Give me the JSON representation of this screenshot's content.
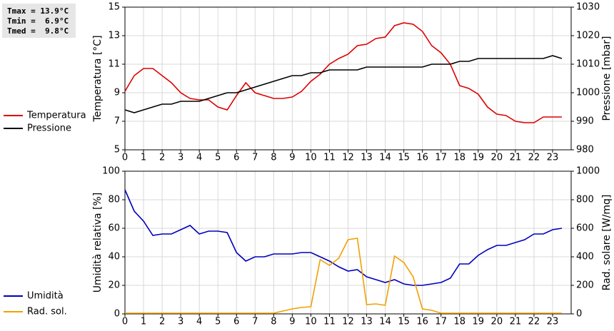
{
  "stats": [
    "Tmax = 13.9°C",
    "Tmin =  6.9°C",
    "Tmed =  9.8°C"
  ],
  "chart_data": [
    {
      "type": "line",
      "ylabel": "Temperatura [°C]",
      "y2label": "Pressione [mbar]",
      "grid": true,
      "legend": "left",
      "xlim": [
        0,
        24
      ],
      "xticks": [
        0,
        1,
        2,
        3,
        4,
        5,
        6,
        7,
        8,
        9,
        10,
        11,
        12,
        13,
        14,
        15,
        16,
        17,
        18,
        19,
        20,
        21,
        22,
        23
      ],
      "ylim": [
        5,
        15
      ],
      "yticks": [
        5,
        7,
        9,
        11,
        13,
        15
      ],
      "y2lim": [
        980,
        1030
      ],
      "y2ticks": [
        980,
        990,
        1000,
        1010,
        1020,
        1030
      ],
      "x": [
        0,
        0.5,
        1,
        1.5,
        2,
        2.5,
        3,
        3.5,
        4,
        4.5,
        5,
        5.5,
        6,
        6.5,
        7,
        7.5,
        8,
        8.5,
        9,
        9.5,
        10,
        10.5,
        11,
        11.5,
        12,
        12.5,
        13,
        13.5,
        14,
        14.5,
        15,
        15.5,
        16,
        16.5,
        17,
        17.5,
        18,
        18.5,
        19,
        19.5,
        20,
        20.5,
        21,
        21.5,
        22,
        22.5,
        23,
        23.5
      ],
      "series": [
        {
          "name": "Temperatura",
          "color": "#dd0000",
          "axis": "y",
          "values": [
            9.1,
            10.2,
            10.7,
            10.7,
            10.2,
            9.7,
            9.0,
            8.6,
            8.5,
            8.5,
            8.0,
            7.8,
            8.8,
            9.7,
            9.0,
            8.8,
            8.6,
            8.6,
            8.7,
            9.1,
            9.8,
            10.3,
            11.0,
            11.4,
            11.7,
            12.3,
            12.4,
            12.8,
            12.9,
            13.7,
            13.9,
            13.8,
            13.3,
            12.3,
            11.8,
            11.0,
            9.5,
            9.3,
            8.9,
            8.0,
            7.5,
            7.4,
            7.0,
            6.9,
            6.9,
            7.3,
            7.3,
            7.3
          ]
        },
        {
          "name": "Pressione",
          "color": "#000000",
          "axis": "y2",
          "values": [
            994,
            993,
            994,
            995,
            996,
            996,
            997,
            997,
            997,
            998,
            999,
            1000,
            1000,
            1001,
            1002,
            1003,
            1004,
            1005,
            1006,
            1006,
            1007,
            1007,
            1008,
            1008,
            1008,
            1008,
            1009,
            1009,
            1009,
            1009,
            1009,
            1009,
            1009,
            1010,
            1010,
            1010,
            1011,
            1011,
            1012,
            1012,
            1012,
            1012,
            1012,
            1012,
            1012,
            1012,
            1013,
            1012
          ]
        }
      ]
    },
    {
      "type": "line",
      "ylabel": "Umidità relativa [%]",
      "y2label": "Rad. solare [W/mq]",
      "grid": true,
      "legend": "left",
      "xlim": [
        0,
        24
      ],
      "xticks": [
        0,
        1,
        2,
        3,
        4,
        5,
        6,
        7,
        8,
        9,
        10,
        11,
        12,
        13,
        14,
        15,
        16,
        17,
        18,
        19,
        20,
        21,
        22,
        23
      ],
      "ylim": [
        0,
        100
      ],
      "yticks": [
        0,
        20,
        40,
        60,
        80,
        100
      ],
      "y2lim": [
        0,
        1000
      ],
      "y2ticks": [
        0,
        200,
        400,
        600,
        800,
        1000
      ],
      "x": [
        0,
        0.5,
        1,
        1.5,
        2,
        2.5,
        3,
        3.5,
        4,
        4.5,
        5,
        5.5,
        6,
        6.5,
        7,
        7.5,
        8,
        8.5,
        9,
        9.5,
        10,
        10.5,
        11,
        11.5,
        12,
        12.5,
        13,
        13.5,
        14,
        14.5,
        15,
        15.5,
        16,
        16.5,
        17,
        17.5,
        18,
        18.5,
        19,
        19.5,
        20,
        20.5,
        21,
        21.5,
        22,
        22.5,
        23,
        23.5
      ],
      "series": [
        {
          "name": "Umidità",
          "color": "#0000bb",
          "axis": "y",
          "values": [
            87,
            72,
            65,
            55,
            56,
            56,
            59,
            62,
            56,
            58,
            58,
            57,
            43,
            37,
            40,
            40,
            42,
            42,
            42,
            43,
            43,
            40,
            37,
            33,
            30,
            31,
            26,
            24,
            22,
            24,
            21,
            20,
            20,
            21,
            22,
            25,
            35,
            35,
            41,
            45,
            48,
            48,
            50,
            52,
            56,
            56,
            59,
            60
          ]
        },
        {
          "name": "Rad. sol.",
          "color": "#f0a000",
          "axis": "y2",
          "values": [
            5,
            5,
            5,
            5,
            5,
            5,
            5,
            5,
            5,
            5,
            5,
            5,
            5,
            5,
            5,
            5,
            5,
            20,
            35,
            45,
            50,
            380,
            340,
            390,
            520,
            530,
            65,
            70,
            60,
            405,
            360,
            260,
            35,
            25,
            5,
            5,
            5,
            5,
            5,
            5,
            5,
            5,
            5,
            5,
            5,
            5,
            5,
            5
          ]
        }
      ]
    }
  ]
}
